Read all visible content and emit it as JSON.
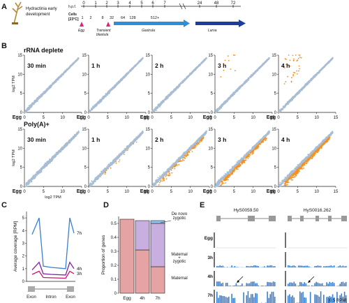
{
  "panelA": {
    "label": "A",
    "organism": "Hydractinia early development",
    "hpf_label": "h.p.f.",
    "hpf_ticks": [
      "0",
      "1",
      "2",
      "3",
      "4",
      "5",
      "6",
      "7",
      "24",
      "48",
      "72"
    ],
    "cells_label": "Cells",
    "temp_label": "[23°C]",
    "cell_counts": [
      "1",
      "2",
      "8",
      "32",
      "64",
      "128",
      "512+"
    ],
    "stages": [
      "Egg",
      "Transient blastula",
      "Gastrula",
      "Larva"
    ],
    "colors": {
      "gastrula": "#2f8fd6",
      "larva": "#1b3d9e",
      "marker": "#e0207a"
    }
  },
  "panelB": {
    "label": "B",
    "row1_title": "rRNA deplete",
    "row2_title": "Poly(A)+",
    "row1_panels": [
      "30 min",
      "1 h",
      "2 h",
      "3 h",
      "4 h"
    ],
    "row2_panels": [
      "30 min",
      "1 h",
      "2 h",
      "3 h",
      "4 h"
    ],
    "ylabel": "log2 TPM",
    "xlabel": "log2 TPM",
    "egg_label": "Egg",
    "ticks": [
      "0",
      "5",
      "10",
      "15"
    ],
    "colors": {
      "bulk": "#a9bdd3",
      "highlight": "#f5901f"
    }
  },
  "chart_data": [
    {
      "type": "line",
      "panel": "C",
      "ylabel": "Average coverage [RPM]",
      "yticks": [
        "0",
        "1",
        "2",
        "3",
        "4",
        "5"
      ],
      "ylim": [
        0,
        5.5
      ],
      "xlabels": [
        "Exon",
        "Intron",
        "Exon"
      ],
      "series": [
        {
          "name": "7h",
          "color": "#3a7fd0",
          "values": [
            3.7,
            5.0,
            1.2,
            1.1,
            1.0,
            5.0,
            3.8
          ]
        },
        {
          "name": "4h",
          "color": "#7d1fa8",
          "values": [
            0.9,
            1.5,
            0.6,
            0.55,
            0.5,
            1.5,
            1.0
          ]
        },
        {
          "name": "3h",
          "color": "#d0156f",
          "values": [
            0.55,
            0.8,
            0.3,
            0.28,
            0.25,
            0.8,
            0.6
          ]
        }
      ]
    },
    {
      "type": "bar",
      "panel": "D",
      "ylabel": "Proportion of genes",
      "categories": [
        "Egg",
        "4h",
        "7h"
      ],
      "yticks": [
        "0",
        "0.1",
        "0.2",
        "0.3",
        "0.4",
        "0.5"
      ],
      "ylim": [
        0,
        0.55
      ],
      "series": [
        {
          "name": "Maternal",
          "color": "#e5a3a3",
          "values": [
            0.53,
            0.31,
            0.19
          ]
        },
        {
          "name": "Maternal + zygotic",
          "color": "#c9aee0",
          "values": [
            0.0,
            0.21,
            0.31
          ]
        },
        {
          "name": "De novo zygotic",
          "color": "#8ec6ef",
          "values": [
            0.0,
            0.0,
            0.02
          ]
        }
      ]
    }
  ],
  "panelE": {
    "label": "E",
    "genes": [
      "HyS0059.50",
      "HyS0016.262"
    ],
    "rows": [
      "Egg",
      "3h",
      "4h",
      "7h"
    ],
    "scale": "[0.5 RPM]",
    "color": "#3a7fd0"
  },
  "panel_labels": {
    "C": "C",
    "D": "D"
  }
}
